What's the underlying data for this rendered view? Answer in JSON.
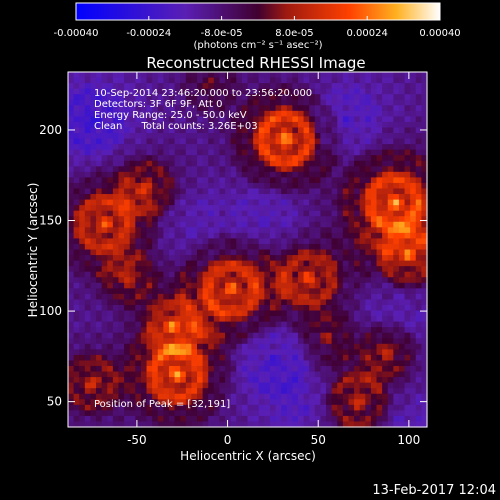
{
  "chart_data": {
    "type": "heatmap",
    "title": "Reconstructed RHESSI Image",
    "xlabel": "Heliocentric X (arcsec)",
    "ylabel": "Heliocentric Y (arcsec)",
    "xlim": [
      -88,
      110
    ],
    "ylim": [
      36,
      232
    ],
    "x_ticks": [
      -50,
      0,
      50,
      100
    ],
    "y_ticks": [
      50,
      100,
      150,
      200
    ],
    "colorbar": {
      "min": -0.0004,
      "max": 0.0004,
      "tick_values": [
        -0.0004,
        -0.00024,
        -8e-05,
        8e-05,
        0.00024,
        0.0004
      ],
      "tick_labels": [
        "-0.00040",
        "-0.00024",
        "-8.0e-05",
        "8.0e-05",
        "0.00024",
        "0.00040"
      ],
      "unit_label": "(photons cm⁻² s⁻¹ asec⁻²)"
    },
    "info_lines": [
      "10-Sep-2014 23:46:20.000 to 23:56:20.000",
      "Detectors: 3F 6F 9F, Att 0",
      "Energy Range: 25.0 - 50.0 keV",
      "Clean      Total counts: 3.26E+03"
    ],
    "peak_label": "Position of Peak = [32,191]",
    "peak": [
      32,
      191
    ],
    "blobs": [
      {
        "x": 32,
        "y": 195,
        "amp": 1.0,
        "r": 16
      },
      {
        "x": 92,
        "y": 160,
        "amp": 0.9,
        "r": 18
      },
      {
        "x": 100,
        "y": 130,
        "amp": 0.7,
        "r": 14
      },
      {
        "x": -68,
        "y": 148,
        "amp": 0.75,
        "r": 16
      },
      {
        "x": -45,
        "y": 168,
        "amp": 0.55,
        "r": 12
      },
      {
        "x": 2,
        "y": 112,
        "amp": 0.85,
        "r": 18
      },
      {
        "x": 45,
        "y": 118,
        "amp": 0.7,
        "r": 14
      },
      {
        "x": -30,
        "y": 92,
        "amp": 0.6,
        "r": 12
      },
      {
        "x": -28,
        "y": 65,
        "amp": 0.9,
        "r": 16
      },
      {
        "x": -75,
        "y": 60,
        "amp": 0.6,
        "r": 12
      },
      {
        "x": 72,
        "y": 50,
        "amp": 0.65,
        "r": 14
      },
      {
        "x": 88,
        "y": 78,
        "amp": 0.55,
        "r": 10
      },
      {
        "x": -55,
        "y": 118,
        "amp": 0.5,
        "r": 10
      },
      {
        "x": 55,
        "y": 85,
        "amp": 0.45,
        "r": 10
      },
      {
        "x": -10,
        "y": 225,
        "amp": 0.35,
        "r": 10
      }
    ],
    "troughs": [
      {
        "x": -75,
        "y": 205,
        "amp": 0.9,
        "r": 16
      },
      {
        "x": 65,
        "y": 205,
        "amp": 0.7,
        "r": 16
      },
      {
        "x": 95,
        "y": 105,
        "amp": 0.6,
        "r": 14
      },
      {
        "x": 25,
        "y": 72,
        "amp": 0.75,
        "r": 18
      },
      {
        "x": 20,
        "y": 150,
        "amp": 0.6,
        "r": 16
      },
      {
        "x": -20,
        "y": 145,
        "amp": 0.5,
        "r": 14
      },
      {
        "x": 45,
        "y": 45,
        "amp": 0.5,
        "r": 12
      },
      {
        "x": 95,
        "y": 40,
        "amp": 0.6,
        "r": 12
      }
    ]
  },
  "footer": {
    "date": "13-Feb-2017 12:04"
  }
}
